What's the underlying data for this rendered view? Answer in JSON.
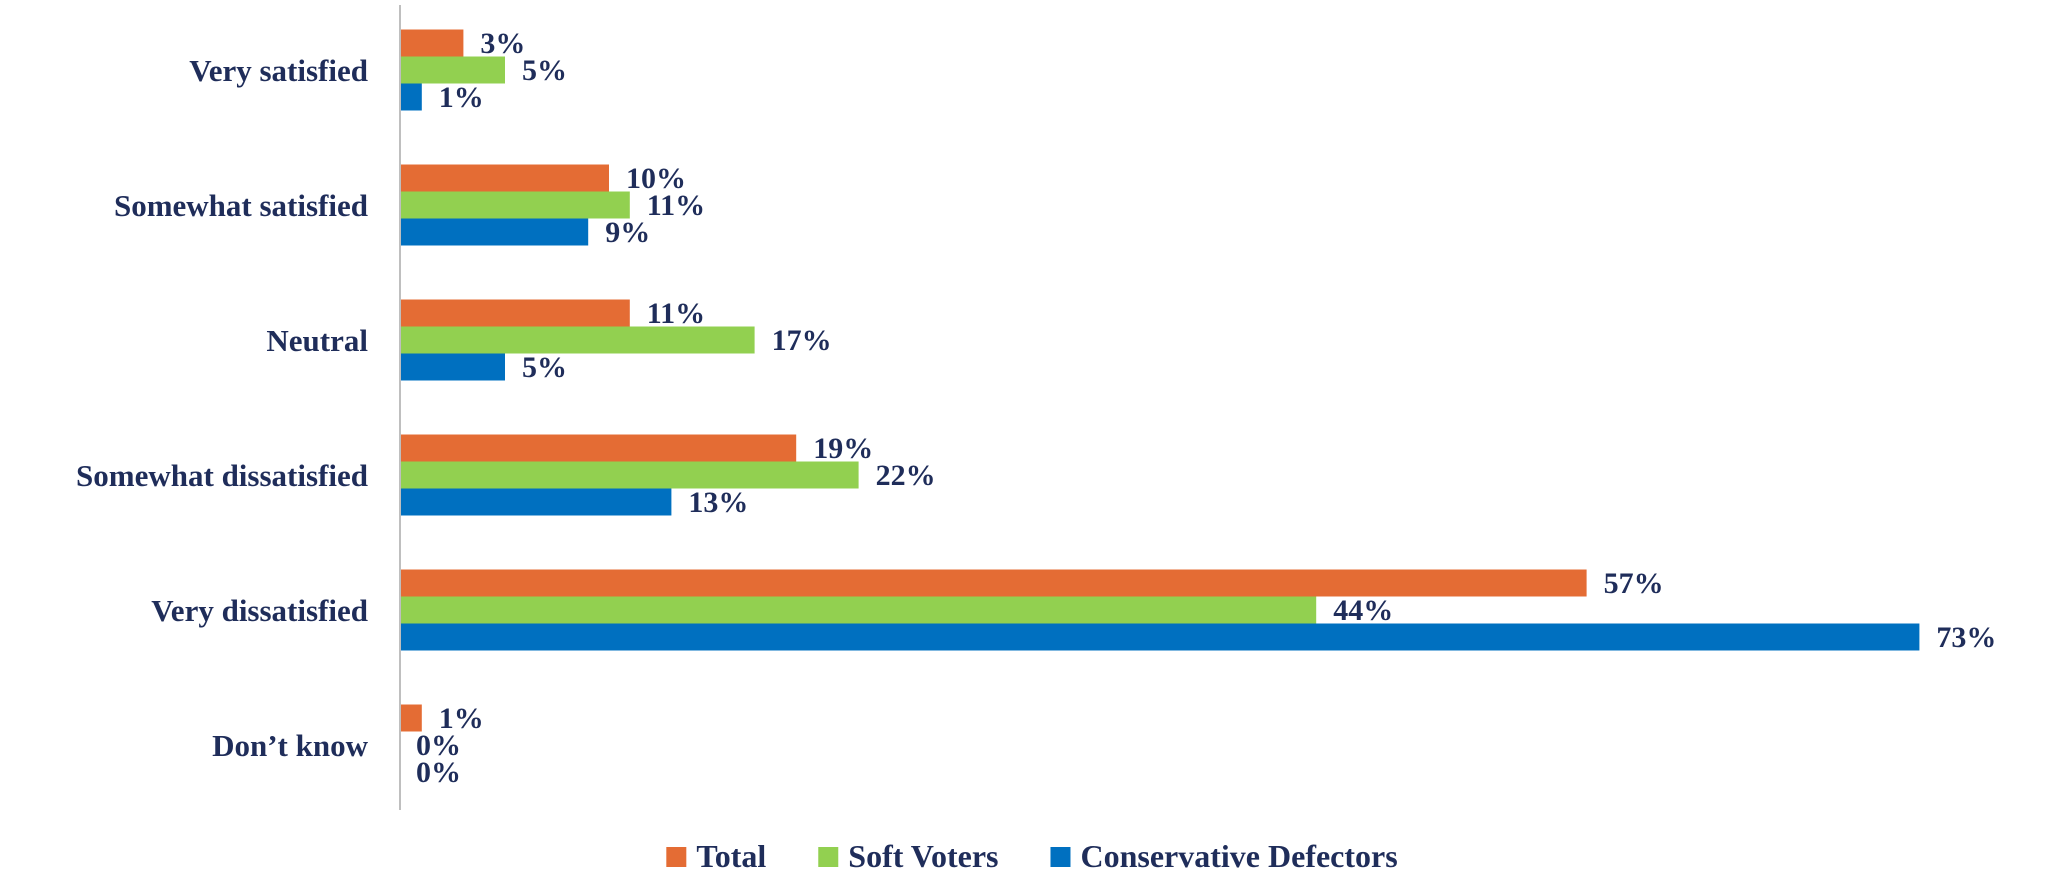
{
  "chart_data": {
    "type": "bar",
    "orientation": "horizontal",
    "categories": [
      "Very satisfied",
      "Somewhat satisfied",
      "Neutral",
      "Somewhat dissatisfied",
      "Very dissatisfied",
      "Don’t know"
    ],
    "series": [
      {
        "name": "Total",
        "color": "#e46c34",
        "values": [
          3,
          10,
          11,
          19,
          57,
          1
        ],
        "labels": [
          "3%",
          "10%",
          "11%",
          "19%",
          "57%",
          "1%"
        ]
      },
      {
        "name": "Soft Voters",
        "color": "#92d050",
        "values": [
          5,
          11,
          17,
          22,
          44,
          0
        ],
        "labels": [
          "5%",
          "11%",
          "17%",
          "22%",
          "44%",
          "0%"
        ]
      },
      {
        "name": "Conservative Defectors",
        "color": "#0070c0",
        "values": [
          1,
          9,
          5,
          13,
          73,
          0
        ],
        "labels": [
          "1%",
          "9%",
          "5%",
          "13%",
          "73%",
          "0%"
        ]
      }
    ],
    "value_unit": "%",
    "xlim": [
      0,
      75
    ],
    "grid": false,
    "legend_position": "bottom",
    "axis_line_color": "#bfbfbf",
    "text_color": "#1f2d5a"
  }
}
